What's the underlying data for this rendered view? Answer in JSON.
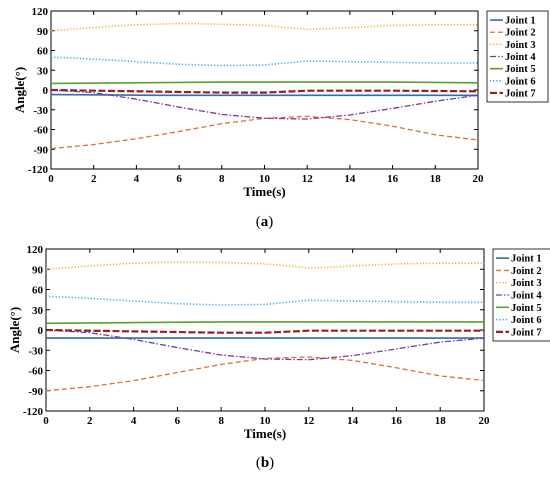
{
  "chart_data": [
    {
      "type": "line",
      "caption_letter": "a",
      "xlabel": "Time(s)",
      "ylabel": "Angle(°)",
      "xlim": [
        0,
        20
      ],
      "ylim": [
        -120,
        120
      ],
      "xticks": [
        0,
        2,
        4,
        6,
        8,
        10,
        12,
        14,
        16,
        18,
        20
      ],
      "yticks": [
        120,
        90,
        60,
        30,
        0,
        -30,
        -60,
        -90,
        -120
      ],
      "grid": false,
      "legend": "outside-right-top",
      "series": [
        {
          "name": "Joint 1",
          "color": "#2f6db5",
          "dash": "solid",
          "points": [
            [
              0,
              -7
            ],
            [
              5,
              -8
            ],
            [
              10,
              -8
            ],
            [
              15,
              -8
            ],
            [
              20,
              -8
            ]
          ]
        },
        {
          "name": "Joint 2",
          "color": "#e07030",
          "dash": "dashed",
          "points": [
            [
              0,
              -89
            ],
            [
              2,
              -83
            ],
            [
              4,
              -74
            ],
            [
              6,
              -63
            ],
            [
              8,
              -51
            ],
            [
              10,
              -43
            ],
            [
              12,
              -40
            ],
            [
              14,
              -45
            ],
            [
              16,
              -55
            ],
            [
              18,
              -68
            ],
            [
              20,
              -76
            ]
          ]
        },
        {
          "name": "Joint 3",
          "color": "#f2b030",
          "dash": "dotted",
          "points": [
            [
              0,
              90
            ],
            [
              2,
              95
            ],
            [
              4,
              99
            ],
            [
              6,
              101
            ],
            [
              8,
              100
            ],
            [
              10,
              98
            ],
            [
              11,
              95
            ],
            [
              12,
              92
            ],
            [
              13,
              93
            ],
            [
              14,
              95
            ],
            [
              16,
              98
            ],
            [
              18,
              99
            ],
            [
              20,
              99
            ]
          ]
        },
        {
          "name": "Joint 4",
          "color": "#7a3a9a",
          "dash": "dashdot",
          "points": [
            [
              0,
              0
            ],
            [
              2,
              -4
            ],
            [
              4,
              -14
            ],
            [
              6,
              -26
            ],
            [
              8,
              -37
            ],
            [
              10,
              -43
            ],
            [
              12,
              -44
            ],
            [
              14,
              -38
            ],
            [
              16,
              -28
            ],
            [
              18,
              -17
            ],
            [
              20,
              -8
            ]
          ]
        },
        {
          "name": "Joint 5",
          "color": "#5aa02c",
          "dash": "solid",
          "points": [
            [
              0,
              10
            ],
            [
              4,
              11
            ],
            [
              8,
              12
            ],
            [
              12,
              12
            ],
            [
              16,
              12
            ],
            [
              20,
              11
            ]
          ]
        },
        {
          "name": "Joint 6",
          "color": "#3aa8e0",
          "dash": "dotted",
          "points": [
            [
              0,
              50
            ],
            [
              2,
              47
            ],
            [
              4,
              43
            ],
            [
              6,
              39
            ],
            [
              8,
              37
            ],
            [
              10,
              38
            ],
            [
              11,
              41
            ],
            [
              12,
              44
            ],
            [
              14,
              43
            ],
            [
              16,
              42
            ],
            [
              18,
              41
            ],
            [
              20,
              41
            ]
          ]
        },
        {
          "name": "Joint 7",
          "color": "#9a1c2a",
          "dash": "longdash",
          "points": [
            [
              0,
              0
            ],
            [
              4,
              -2
            ],
            [
              8,
              -4
            ],
            [
              10,
              -4
            ],
            [
              12,
              -1
            ],
            [
              16,
              -1
            ],
            [
              20,
              -2
            ]
          ]
        }
      ]
    },
    {
      "type": "line",
      "caption_letter": "b",
      "xlabel": "Time(s)",
      "ylabel": "Angle(°)",
      "xlim": [
        0,
        20
      ],
      "ylim": [
        -120,
        120
      ],
      "xticks": [
        0,
        2,
        4,
        6,
        8,
        10,
        12,
        14,
        16,
        18,
        20
      ],
      "yticks": [
        120,
        90,
        60,
        30,
        0,
        -30,
        -60,
        -90,
        -120
      ],
      "grid": false,
      "legend": "outside-right-top",
      "series": [
        {
          "name": "Joint 1",
          "color": "#2f6db5",
          "dash": "solid",
          "points": [
            [
              0,
              -12
            ],
            [
              5,
              -12
            ],
            [
              10,
              -12
            ],
            [
              15,
              -12
            ],
            [
              20,
              -12
            ]
          ]
        },
        {
          "name": "Joint 2",
          "color": "#e07030",
          "dash": "dashed",
          "points": [
            [
              0,
              -90
            ],
            [
              2,
              -84
            ],
            [
              4,
              -75
            ],
            [
              6,
              -63
            ],
            [
              8,
              -51
            ],
            [
              10,
              -42
            ],
            [
              12,
              -40
            ],
            [
              14,
              -45
            ],
            [
              16,
              -56
            ],
            [
              18,
              -68
            ],
            [
              20,
              -75
            ]
          ]
        },
        {
          "name": "Joint 3",
          "color": "#f2b030",
          "dash": "dotted",
          "points": [
            [
              0,
              90
            ],
            [
              2,
              95
            ],
            [
              4,
              99
            ],
            [
              6,
              101
            ],
            [
              8,
              100
            ],
            [
              10,
              98
            ],
            [
              11,
              95
            ],
            [
              12,
              92
            ],
            [
              13,
              93
            ],
            [
              14,
              95
            ],
            [
              16,
              98
            ],
            [
              18,
              99
            ],
            [
              20,
              99
            ]
          ]
        },
        {
          "name": "Joint 4",
          "color": "#7a3a9a",
          "dash": "dashdot",
          "points": [
            [
              0,
              0
            ],
            [
              2,
              -4
            ],
            [
              4,
              -14
            ],
            [
              6,
              -26
            ],
            [
              8,
              -37
            ],
            [
              10,
              -43
            ],
            [
              12,
              -44
            ],
            [
              14,
              -38
            ],
            [
              16,
              -28
            ],
            [
              18,
              -18
            ],
            [
              20,
              -12
            ]
          ]
        },
        {
          "name": "Joint 5",
          "color": "#5aa02c",
          "dash": "solid",
          "points": [
            [
              0,
              10
            ],
            [
              4,
              11
            ],
            [
              8,
              12
            ],
            [
              12,
              12
            ],
            [
              16,
              12
            ],
            [
              20,
              12
            ]
          ]
        },
        {
          "name": "Joint 6",
          "color": "#3aa8e0",
          "dash": "dotted",
          "points": [
            [
              0,
              50
            ],
            [
              2,
              47
            ],
            [
              4,
              43
            ],
            [
              6,
              39
            ],
            [
              8,
              37
            ],
            [
              10,
              38
            ],
            [
              11,
              41
            ],
            [
              12,
              44
            ],
            [
              14,
              43
            ],
            [
              16,
              42
            ],
            [
              18,
              41
            ],
            [
              20,
              41
            ]
          ]
        },
        {
          "name": "Joint 7",
          "color": "#9a1c2a",
          "dash": "longdash",
          "points": [
            [
              0,
              0
            ],
            [
              4,
              -2
            ],
            [
              8,
              -4
            ],
            [
              10,
              -4
            ],
            [
              12,
              -1
            ],
            [
              16,
              -1
            ],
            [
              20,
              -1
            ]
          ]
        }
      ]
    }
  ]
}
